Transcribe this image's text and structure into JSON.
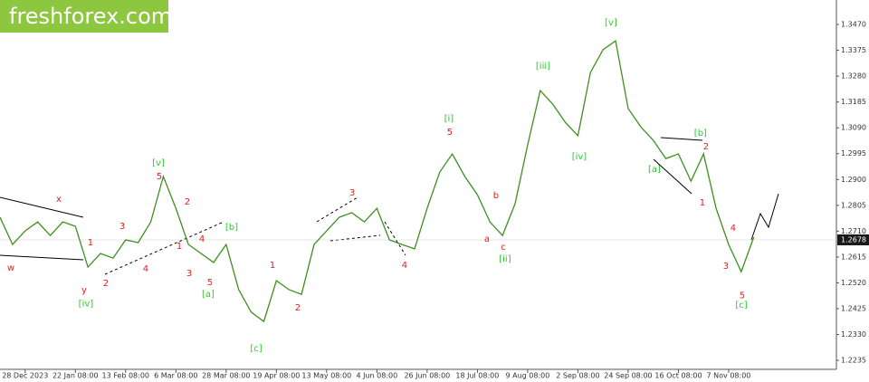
{
  "logo": "freshforex.com",
  "chart_data": {
    "type": "line",
    "series": [
      {
        "color": "#3f8f1f",
        "values": [
          1.2761,
          1.2661,
          1.2711,
          1.2744,
          1.2694,
          1.2744,
          1.2728,
          1.2578,
          1.2628,
          1.2611,
          1.2678,
          1.2668,
          1.2744,
          1.2911,
          1.2794,
          1.2661,
          1.2628,
          1.2595,
          1.2661,
          1.2495,
          1.2412,
          1.2378,
          1.2528,
          1.2495,
          1.2478,
          1.2661,
          1.2711,
          1.2761,
          1.2778,
          1.2744,
          1.2794,
          1.2678,
          1.2661,
          1.2645,
          1.2794,
          1.2927,
          1.2994,
          1.2911,
          1.2844,
          1.2744,
          1.2694,
          1.2811,
          1.3027,
          1.3227,
          1.3177,
          1.311,
          1.3061,
          1.3294,
          1.3377,
          1.341,
          1.3161,
          1.3094,
          1.3044,
          1.2977,
          1.2994,
          1.2894,
          1.2994,
          1.2794,
          1.2661,
          1.2561,
          1.2688
        ]
      }
    ],
    "xlim": [
      0,
      66
    ],
    "xticks": [
      {
        "value": 2,
        "label": "28 Dec 2023"
      },
      {
        "value": 6,
        "label": "22 Jan 08:00"
      },
      {
        "value": 10,
        "label": "13 Feb 08:00"
      },
      {
        "value": 14,
        "label": "6 Mar 08:00"
      },
      {
        "value": 18,
        "label": "28 Mar 08:00"
      },
      {
        "value": 22,
        "label": "19 Apr 08:00"
      },
      {
        "value": 26,
        "label": "13 May 08:00"
      },
      {
        "value": 30,
        "label": "4 Jun 08:00"
      },
      {
        "value": 34,
        "label": "26 Jun 08:00"
      },
      {
        "value": 38,
        "label": "18 Jul 08:00"
      },
      {
        "value": 42,
        "label": "9 Aug 08:00"
      },
      {
        "value": 46,
        "label": "2 Sep 08:00"
      },
      {
        "value": 50,
        "label": "24 Sep 08:00"
      },
      {
        "value": 54,
        "label": "16 Oct 08:00"
      },
      {
        "value": 58,
        "label": "7 Nov 08:00"
      }
    ],
    "ylim": [
      1.2202,
      1.356
    ],
    "yticks": [
      1.2235,
      {
        "value": 1.233,
        "label": "1.2330"
      },
      1.2425,
      {
        "value": 1.252,
        "label": "1.2520"
      },
      1.2615,
      {
        "value": 1.271,
        "label": "1.2710"
      },
      1.2805,
      {
        "value": 1.29,
        "label": "1.2900"
      },
      1.2995,
      {
        "value": 1.309,
        "label": "1.3090"
      },
      1.3185,
      {
        "value": 1.328,
        "label": "1.3280"
      },
      1.3375,
      {
        "value": 1.347,
        "label": "1.3470"
      }
    ],
    "last_price": 1.2678,
    "annotations": [
      {
        "text": "x",
        "color": "#e02020",
        "x": 4.68,
        "y": 1.2827
      },
      {
        "text": "w",
        "color": "#e02020",
        "x": 0.86,
        "y": 1.2574
      },
      {
        "text": "y",
        "color": "#e02020",
        "x": 6.7,
        "y": 1.2494
      },
      {
        "text": "[iv]",
        "color": "#2ec82e",
        "x": 6.84,
        "y": 1.2444
      },
      {
        "text": "1",
        "color": "#e02020",
        "x": 7.2,
        "y": 1.2668
      },
      {
        "text": "2",
        "color": "#e02020",
        "x": 8.43,
        "y": 1.2518
      },
      {
        "text": "3",
        "color": "#e02020",
        "x": 9.73,
        "y": 1.2728
      },
      {
        "text": "4",
        "color": "#e02020",
        "x": 11.6,
        "y": 1.2571
      },
      {
        "text": "[v]",
        "color": "#2ec82e",
        "x": 12.61,
        "y": 1.2961
      },
      {
        "text": "5",
        "color": "#e02020",
        "x": 12.68,
        "y": 1.2911
      },
      {
        "text": "2",
        "color": "#e02020",
        "x": 14.91,
        "y": 1.2817
      },
      {
        "text": "1",
        "color": "#e02020",
        "x": 14.27,
        "y": 1.2654
      },
      {
        "text": "4",
        "color": "#e02020",
        "x": 16.07,
        "y": 1.2681
      },
      {
        "text": "3",
        "color": "#e02020",
        "x": 15.06,
        "y": 1.2554
      },
      {
        "text": "5",
        "color": "#e02020",
        "x": 16.71,
        "y": 1.2521
      },
      {
        "text": "[a]",
        "color": "#2ec82e",
        "x": 16.57,
        "y": 1.2478
      },
      {
        "text": "[b]",
        "color": "#2ec82e",
        "x": 18.44,
        "y": 1.2724
      },
      {
        "text": "[c]",
        "color": "#2ec82e",
        "x": 20.39,
        "y": 1.2278
      },
      {
        "text": "1",
        "color": "#e02020",
        "x": 21.69,
        "y": 1.2584
      },
      {
        "text": "2",
        "color": "#e02020",
        "x": 23.7,
        "y": 1.2428
      },
      {
        "text": "3",
        "color": "#e02020",
        "x": 28.03,
        "y": 1.2851
      },
      {
        "text": "4",
        "color": "#e02020",
        "x": 32.2,
        "y": 1.2584
      },
      {
        "text": "[i]",
        "color": "#2ec82e",
        "x": 35.73,
        "y": 1.3124
      },
      {
        "text": "5",
        "color": "#e02020",
        "x": 35.81,
        "y": 1.3074
      },
      {
        "text": "b",
        "color": "#e02020",
        "x": 39.48,
        "y": 1.2841
      },
      {
        "text": "a",
        "color": "#e02020",
        "x": 38.76,
        "y": 1.2681
      },
      {
        "text": "c",
        "color": "#e02020",
        "x": 40.06,
        "y": 1.2651
      },
      {
        "text": "[ii]",
        "color": "#2ec82e",
        "x": 40.2,
        "y": 1.2608
      },
      {
        "text": "[iii]",
        "color": "#2ec82e",
        "x": 43.23,
        "y": 1.3317
      },
      {
        "text": "[iv]",
        "color": "#2ec82e",
        "x": 46.11,
        "y": 1.2984
      },
      {
        "text": "[v]",
        "color": "#2ec82e",
        "x": 48.63,
        "y": 1.3477
      },
      {
        "text": "[a]",
        "color": "#2ec82e",
        "x": 52.09,
        "y": 1.2937
      },
      {
        "text": "[b]",
        "color": "#2ec82e",
        "x": 55.76,
        "y": 1.3071
      },
      {
        "text": "2",
        "color": "#e02020",
        "x": 56.2,
        "y": 1.3021
      },
      {
        "text": "1",
        "color": "#e02020",
        "x": 55.91,
        "y": 1.2814
      },
      {
        "text": "4",
        "color": "#e02020",
        "x": 58.36,
        "y": 1.2721
      },
      {
        "text": "3",
        "color": "#e02020",
        "x": 57.78,
        "y": 1.2581
      },
      {
        "text": "5",
        "color": "#e02020",
        "x": 59.08,
        "y": 1.2474
      },
      {
        "text": "[c]",
        "color": "#2ec82e",
        "x": 59.01,
        "y": 1.2438
      }
    ]
  }
}
